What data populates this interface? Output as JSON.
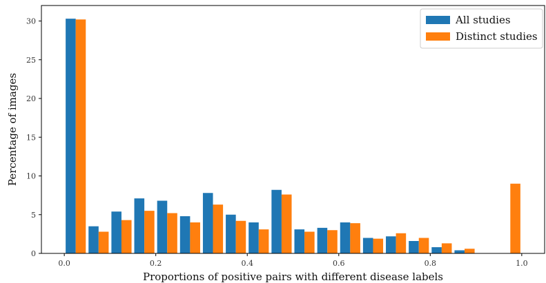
{
  "chart_data": {
    "type": "bar",
    "title": "",
    "xlabel": "Proportions of positive pairs with different disease labels",
    "ylabel": "Percentage of images",
    "xlim": [
      -0.05,
      1.05
    ],
    "ylim": [
      0,
      32
    ],
    "bin_width": 0.05,
    "bin_starts": [
      0.0,
      0.05,
      0.1,
      0.15,
      0.2,
      0.25,
      0.3,
      0.35,
      0.4,
      0.45,
      0.5,
      0.55,
      0.6,
      0.65,
      0.7,
      0.75,
      0.8,
      0.85,
      0.9,
      0.95
    ],
    "x_ticks": [
      "0.0",
      "0.2",
      "0.4",
      "0.6",
      "0.8",
      "1.0"
    ],
    "x_tick_values": [
      0.0,
      0.2,
      0.4,
      0.6,
      0.8,
      1.0
    ],
    "y_ticks": [
      "0",
      "5",
      "10",
      "15",
      "20",
      "25",
      "30"
    ],
    "y_tick_values": [
      0,
      5,
      10,
      15,
      20,
      25,
      30
    ],
    "grid": false,
    "legend_position": "top-right",
    "series": [
      {
        "name": "All studies",
        "color": "#1f77b4",
        "values": [
          30.3,
          3.5,
          5.4,
          7.1,
          6.8,
          4.8,
          7.8,
          5.0,
          4.0,
          8.2,
          3.1,
          3.3,
          4.0,
          2.0,
          2.2,
          1.6,
          0.8,
          0.4,
          0.0,
          0.0
        ]
      },
      {
        "name": "Distinct studies",
        "color": "#ff7f0e",
        "values": [
          30.2,
          2.8,
          4.3,
          5.5,
          5.2,
          4.0,
          6.3,
          4.2,
          3.1,
          7.6,
          2.8,
          3.0,
          3.9,
          1.9,
          2.6,
          2.0,
          1.3,
          0.6,
          0.0,
          9.0
        ]
      }
    ]
  }
}
